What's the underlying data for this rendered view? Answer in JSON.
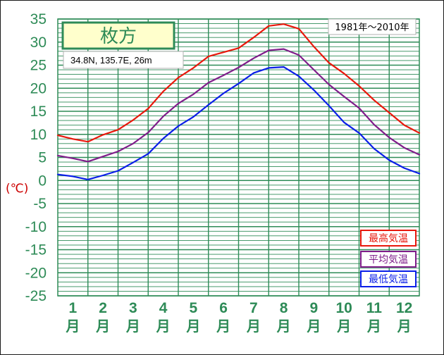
{
  "chart_data": {
    "type": "line",
    "title": "枚方",
    "location": "34.8N, 135.7E, 26m",
    "period": "1981年～2010年",
    "ylabel": "(℃)",
    "ylim": [
      -25,
      35
    ],
    "yticks": [
      "35",
      "30",
      "25",
      "20",
      "15",
      "10",
      "5",
      "0",
      "-5",
      "-10",
      "-15",
      "-20",
      "-25"
    ],
    "grid": true,
    "legend_position": "bottom-right",
    "months": [
      "1",
      "2",
      "3",
      "4",
      "5",
      "6",
      "7",
      "8",
      "9",
      "10",
      "11",
      "12"
    ],
    "month_suffix": "月",
    "x": [
      0.0,
      0.5,
      1.0,
      1.5,
      2.0,
      2.5,
      3.0,
      3.5,
      4.0,
      4.5,
      5.0,
      5.5,
      6.0,
      6.5,
      7.0,
      7.5,
      8.0,
      8.5,
      9.0,
      9.5,
      10.0,
      10.5,
      11.0,
      11.5,
      12.0
    ],
    "series": [
      {
        "name": "最高気温",
        "color": "#e8180c",
        "values": [
          9.8,
          9.0,
          8.4,
          9.9,
          11.0,
          13.1,
          15.6,
          19.3,
          22.3,
          24.4,
          26.9,
          27.8,
          28.7,
          31.0,
          33.5,
          33.9,
          32.9,
          29.0,
          25.5,
          23.2,
          20.5,
          17.4,
          14.7,
          12.0,
          10.3
        ]
      },
      {
        "name": "平均気温",
        "color": "#7f1d8a",
        "values": [
          5.4,
          4.8,
          4.1,
          5.2,
          6.3,
          8.0,
          10.4,
          13.9,
          16.7,
          18.7,
          21.2,
          22.8,
          24.5,
          26.5,
          28.2,
          28.5,
          27.2,
          24.0,
          20.8,
          18.2,
          15.7,
          12.1,
          9.3,
          7.1,
          5.6
        ]
      },
      {
        "name": "最低気温",
        "color": "#0a1ee8",
        "values": [
          1.3,
          0.9,
          0.2,
          1.1,
          2.1,
          3.9,
          5.8,
          9.1,
          11.8,
          13.8,
          16.4,
          18.9,
          21.0,
          23.3,
          24.4,
          24.6,
          22.6,
          19.6,
          16.2,
          12.6,
          10.3,
          6.9,
          4.4,
          2.7,
          1.5
        ]
      }
    ]
  }
}
